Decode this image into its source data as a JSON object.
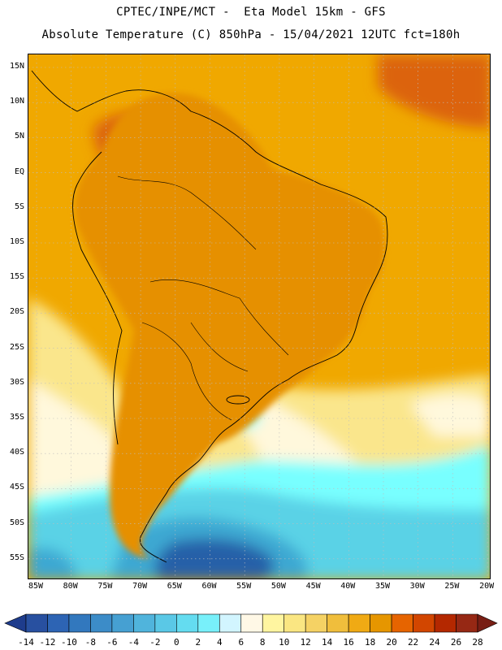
{
  "header": {
    "line1": "CPTEC/INPE/MCT -  Eta Model 15km - GFS",
    "line2": "Absolute Temperature (C) 850hPa - 15/04/2021 12UTC fct=180h"
  },
  "map": {
    "lat_labels": [
      "15N",
      "10N",
      "5N",
      "EQ",
      "5S",
      "10S",
      "15S",
      "20S",
      "25S",
      "30S",
      "35S",
      "40S",
      "45S",
      "50S",
      "55S"
    ],
    "lon_labels": [
      "85W",
      "80W",
      "75W",
      "70W",
      "65W",
      "60W",
      "55W",
      "50W",
      "45W",
      "40W",
      "35W",
      "30W",
      "25W",
      "20W"
    ],
    "colors": {
      "ocean_warm": "#f0a800",
      "land_warm": "#e69000",
      "hot": "#dc6410",
      "cool_yellow": "#fae68c",
      "pale": "#fff8dc",
      "cyan": "#78ffff",
      "sky": "#5ad2e6",
      "blue": "#3ca8d2",
      "deep_blue": "#2860a8"
    }
  },
  "colorbar": {
    "labels": [
      "-14",
      "-12",
      "-10",
      "-8",
      "-6",
      "-4",
      "-2",
      "0",
      "2",
      "4",
      "6",
      "8",
      "10",
      "12",
      "14",
      "16",
      "18",
      "20",
      "22",
      "24",
      "26",
      "28"
    ],
    "colors": [
      "#1e3c8c",
      "#2850a0",
      "#2d64b4",
      "#3278be",
      "#3c8cc8",
      "#46a0d2",
      "#50b4dc",
      "#5ac8e6",
      "#64dcf0",
      "#78f0fa",
      "#d2f5ff",
      "#fff8e6",
      "#fff5a0",
      "#fae682",
      "#f5d264",
      "#f0be3c",
      "#f0aa14",
      "#e69600",
      "#e66400",
      "#d24600",
      "#b42800",
      "#962814",
      "#781e14"
    ]
  }
}
